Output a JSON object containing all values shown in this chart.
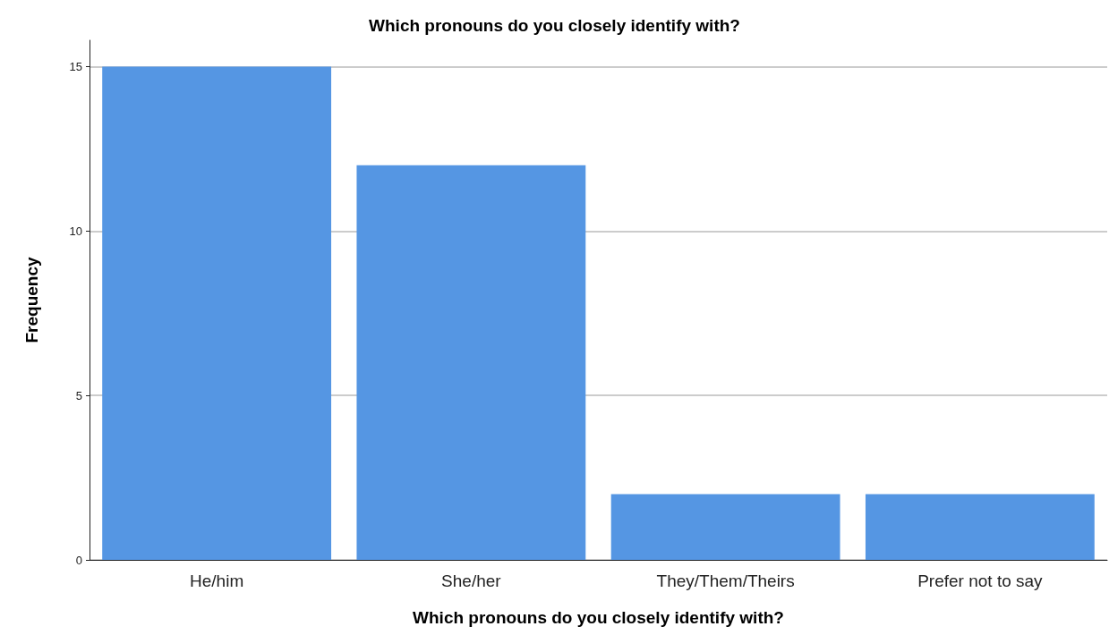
{
  "chart_data": {
    "type": "bar",
    "title": "Which pronouns do you closely identify with?",
    "xlabel": "Which pronouns do you closely identify with?",
    "ylabel": "Frequency",
    "categories": [
      "He/him",
      "She/her",
      "They/Them/Theirs",
      "Prefer not to say"
    ],
    "values": [
      15,
      12,
      2,
      2
    ],
    "color": "#5596e3",
    "ylim": [
      0,
      15.8
    ],
    "yticks": [
      0,
      5,
      10,
      15
    ],
    "grid": "y"
  }
}
